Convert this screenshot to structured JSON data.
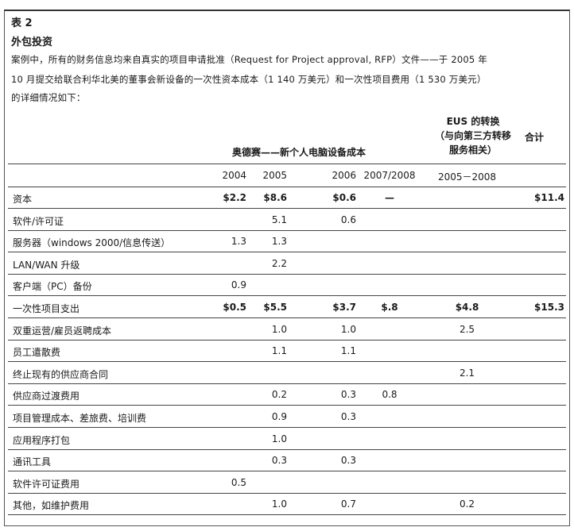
{
  "table_label": "表 2",
  "title": "外包投资",
  "intro": [
    "案例中，所有的财务信息均来自真实的项目申请批准（Request for Project approval, RFP）文件——于 2005 年",
    "10 月提交给联合利华北美的董事会新设备的一次性资本成本（1 140 万美元）和一次性项目费用（1 530 万美元）",
    "的详细情况如下："
  ],
  "group_header": "奥德赛——新个人电脑设备成本",
  "eus_header": [
    "EUS 的转换",
    "（与向第三方转移",
    "服务相关）"
  ],
  "total_header": "合计",
  "columns": [
    "2004",
    "2005",
    "2006",
    "2007/2008",
    "2005－2008",
    ""
  ],
  "rows": [
    {
      "label": "资本",
      "bold": true,
      "cells": [
        "$2.2",
        "$8.6",
        "$0.6",
        "—",
        "",
        "$11.4"
      ]
    },
    {
      "label": "软件/许可证",
      "cells": [
        "",
        "5.1",
        "0.6",
        "",
        "",
        ""
      ]
    },
    {
      "label": "服务器（windows 2000/信息传送）",
      "cells": [
        "1.3",
        "1.3",
        "",
        "",
        "",
        ""
      ]
    },
    {
      "label": "LAN/WAN 升级",
      "cells": [
        "",
        "2.2",
        "",
        "",
        "",
        ""
      ]
    },
    {
      "label": "客户端（PC）备份",
      "cells": [
        "0.9",
        "",
        "",
        "",
        "",
        ""
      ]
    },
    {
      "label": "一次性项目支出",
      "bold": true,
      "cells": [
        "$0.5",
        "$5.5",
        "$3.7",
        "$.8",
        "$4.8",
        "$15.3"
      ]
    },
    {
      "label": "双重运营/雇员返聘成本",
      "cells": [
        "",
        "1.0",
        "1.0",
        "",
        "2.5",
        ""
      ]
    },
    {
      "label": "员工遣散费",
      "cells": [
        "",
        "1.1",
        "1.1",
        "",
        "",
        ""
      ]
    },
    {
      "label": "终止现有的供应商合同",
      "cells": [
        "",
        "",
        "",
        "",
        "2.1",
        ""
      ]
    },
    {
      "label": "供应商过渡费用",
      "cells": [
        "",
        "0.2",
        "0.3",
        "0.8",
        "",
        ""
      ]
    },
    {
      "label": "项目管理成本、差旅费、培训费",
      "cells": [
        "",
        "0.9",
        "0.3",
        "",
        "",
        ""
      ]
    },
    {
      "label": "应用程序打包",
      "cells": [
        "",
        "1.0",
        "",
        "",
        "",
        ""
      ]
    },
    {
      "label": "通讯工具",
      "cells": [
        "",
        "0.3",
        "0.3",
        "",
        "",
        ""
      ]
    },
    {
      "label": "软件许可证费用",
      "cells": [
        "0.5",
        "",
        "",
        "",
        "",
        ""
      ]
    },
    {
      "label": "其他，如维护费用",
      "cells": [
        "",
        "1.0",
        "0.7",
        "",
        "0.2",
        ""
      ]
    }
  ]
}
